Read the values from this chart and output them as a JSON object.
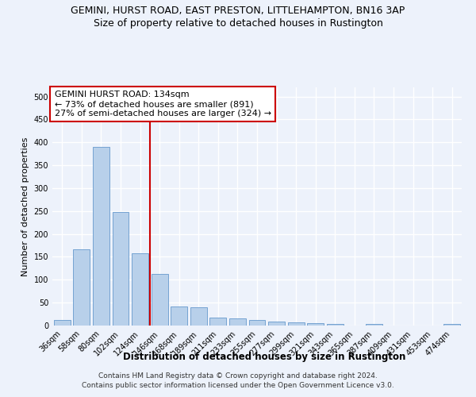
{
  "title": "GEMINI, HURST ROAD, EAST PRESTON, LITTLEHAMPTON, BN16 3AP",
  "subtitle": "Size of property relative to detached houses in Rustington",
  "xlabel": "Distribution of detached houses by size in Rustington",
  "ylabel": "Number of detached properties",
  "categories": [
    "36sqm",
    "58sqm",
    "80sqm",
    "102sqm",
    "124sqm",
    "146sqm",
    "168sqm",
    "189sqm",
    "211sqm",
    "233sqm",
    "255sqm",
    "277sqm",
    "299sqm",
    "321sqm",
    "343sqm",
    "365sqm",
    "387sqm",
    "409sqm",
    "431sqm",
    "453sqm",
    "474sqm"
  ],
  "values": [
    12,
    166,
    390,
    248,
    157,
    113,
    42,
    40,
    18,
    15,
    13,
    8,
    7,
    5,
    3,
    0,
    3,
    0,
    0,
    0,
    4
  ],
  "bar_color": "#b8d0ea",
  "bar_edge_color": "#6699cc",
  "vline_x_index": 4,
  "vline_color": "#cc0000",
  "annotation_line1": "GEMINI HURST ROAD: 134sqm",
  "annotation_line2": "← 73% of detached houses are smaller (891)",
  "annotation_line3": "27% of semi-detached houses are larger (324) →",
  "annotation_box_facecolor": "#ffffff",
  "annotation_box_edgecolor": "#cc0000",
  "ylim": [
    0,
    520
  ],
  "yticks": [
    0,
    50,
    100,
    150,
    200,
    250,
    300,
    350,
    400,
    450,
    500
  ],
  "footer_line1": "Contains HM Land Registry data © Crown copyright and database right 2024.",
  "footer_line2": "Contains public sector information licensed under the Open Government Licence v3.0.",
  "background_color": "#edf2fb",
  "grid_color": "#ffffff",
  "title_fontsize": 9,
  "subtitle_fontsize": 9,
  "ylabel_fontsize": 8,
  "xlabel_fontsize": 8.5,
  "tick_fontsize": 7,
  "annotation_fontsize": 8,
  "footer_fontsize": 6.5
}
